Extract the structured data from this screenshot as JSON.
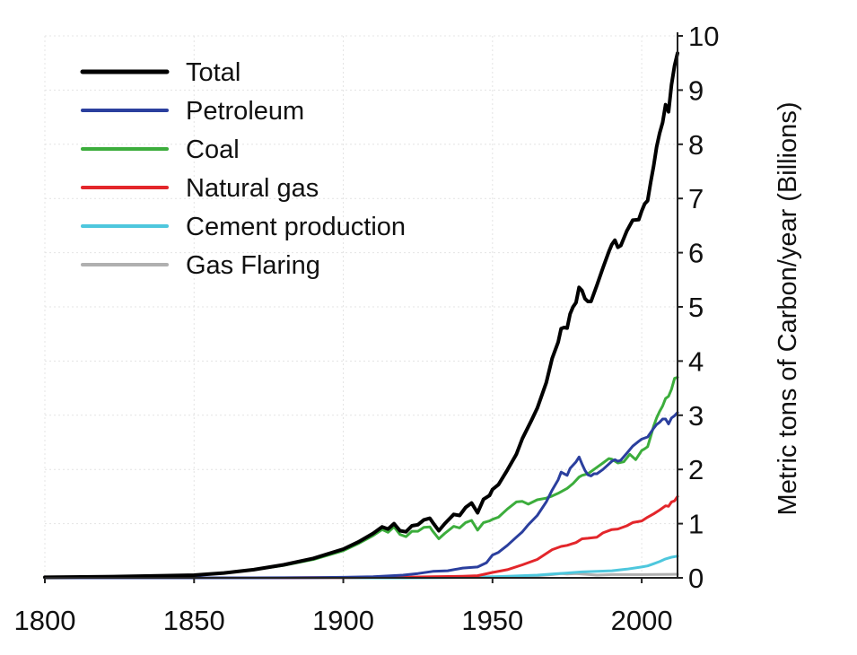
{
  "chart_data": {
    "type": "line",
    "title": "",
    "xlabel": "",
    "ylabel": "Metric tons of Carbon/year (Billions)",
    "xlim": [
      1800,
      2012
    ],
    "ylim": [
      0,
      10
    ],
    "x_ticks": [
      "1800",
      "1850",
      "1900",
      "1950",
      "2000"
    ],
    "y_ticks": [
      "0",
      "1",
      "2",
      "3",
      "4",
      "5",
      "6",
      "7",
      "8",
      "9",
      "10"
    ],
    "y_axis_side": "right",
    "grid": true,
    "legend_position": "top-left",
    "series": [
      {
        "name": "Total",
        "color": "#000000",
        "points": [
          [
            1800,
            0.01
          ],
          [
            1820,
            0.02
          ],
          [
            1840,
            0.04
          ],
          [
            1850,
            0.05
          ],
          [
            1860,
            0.09
          ],
          [
            1870,
            0.15
          ],
          [
            1880,
            0.24
          ],
          [
            1890,
            0.36
          ],
          [
            1900,
            0.53
          ],
          [
            1905,
            0.66
          ],
          [
            1910,
            0.82
          ],
          [
            1913,
            0.94
          ],
          [
            1915,
            0.9
          ],
          [
            1917,
            1.0
          ],
          [
            1919,
            0.87
          ],
          [
            1921,
            0.85
          ],
          [
            1923,
            0.96
          ],
          [
            1925,
            0.98
          ],
          [
            1927,
            1.07
          ],
          [
            1929,
            1.1
          ],
          [
            1930,
            1.02
          ],
          [
            1932,
            0.87
          ],
          [
            1934,
            1.0
          ],
          [
            1937,
            1.17
          ],
          [
            1939,
            1.15
          ],
          [
            1941,
            1.3
          ],
          [
            1943,
            1.38
          ],
          [
            1945,
            1.2
          ],
          [
            1947,
            1.45
          ],
          [
            1949,
            1.52
          ],
          [
            1950,
            1.63
          ],
          [
            1952,
            1.72
          ],
          [
            1955,
            1.99
          ],
          [
            1958,
            2.28
          ],
          [
            1960,
            2.57
          ],
          [
            1963,
            2.9
          ],
          [
            1965,
            3.13
          ],
          [
            1968,
            3.6
          ],
          [
            1970,
            4.05
          ],
          [
            1972,
            4.35
          ],
          [
            1973,
            4.6
          ],
          [
            1974,
            4.62
          ],
          [
            1975,
            4.61
          ],
          [
            1976,
            4.87
          ],
          [
            1977,
            5.0
          ],
          [
            1978,
            5.08
          ],
          [
            1979,
            5.36
          ],
          [
            1980,
            5.3
          ],
          [
            1981,
            5.15
          ],
          [
            1982,
            5.1
          ],
          [
            1983,
            5.1
          ],
          [
            1985,
            5.4
          ],
          [
            1987,
            5.72
          ],
          [
            1989,
            6.02
          ],
          [
            1990,
            6.15
          ],
          [
            1991,
            6.23
          ],
          [
            1992,
            6.1
          ],
          [
            1993,
            6.13
          ],
          [
            1995,
            6.4
          ],
          [
            1997,
            6.6
          ],
          [
            1999,
            6.61
          ],
          [
            2000,
            6.77
          ],
          [
            2001,
            6.9
          ],
          [
            2002,
            6.96
          ],
          [
            2003,
            7.3
          ],
          [
            2004,
            7.6
          ],
          [
            2005,
            7.95
          ],
          [
            2006,
            8.2
          ],
          [
            2007,
            8.4
          ],
          [
            2008,
            8.73
          ],
          [
            2009,
            8.6
          ],
          [
            2010,
            9.1
          ],
          [
            2011,
            9.45
          ],
          [
            2012,
            9.68
          ]
        ]
      },
      {
        "name": "Petroleum",
        "color": "#2b3f9e",
        "points": [
          [
            1800,
            0.0
          ],
          [
            1870,
            0.0
          ],
          [
            1880,
            0.002
          ],
          [
            1890,
            0.005
          ],
          [
            1900,
            0.01
          ],
          [
            1910,
            0.02
          ],
          [
            1920,
            0.05
          ],
          [
            1925,
            0.08
          ],
          [
            1930,
            0.12
          ],
          [
            1935,
            0.13
          ],
          [
            1940,
            0.18
          ],
          [
            1945,
            0.2
          ],
          [
            1948,
            0.28
          ],
          [
            1950,
            0.42
          ],
          [
            1952,
            0.47
          ],
          [
            1955,
            0.6
          ],
          [
            1958,
            0.75
          ],
          [
            1960,
            0.85
          ],
          [
            1962,
            0.98
          ],
          [
            1965,
            1.15
          ],
          [
            1968,
            1.4
          ],
          [
            1970,
            1.62
          ],
          [
            1972,
            1.81
          ],
          [
            1973,
            1.95
          ],
          [
            1974,
            1.92
          ],
          [
            1975,
            1.89
          ],
          [
            1976,
            2.02
          ],
          [
            1977,
            2.08
          ],
          [
            1978,
            2.14
          ],
          [
            1979,
            2.23
          ],
          [
            1980,
            2.1
          ],
          [
            1981,
            1.98
          ],
          [
            1982,
            1.9
          ],
          [
            1983,
            1.88
          ],
          [
            1984,
            1.92
          ],
          [
            1985,
            1.92
          ],
          [
            1987,
            2.0
          ],
          [
            1989,
            2.1
          ],
          [
            1990,
            2.15
          ],
          [
            1991,
            2.18
          ],
          [
            1992,
            2.15
          ],
          [
            1993,
            2.17
          ],
          [
            1995,
            2.3
          ],
          [
            1997,
            2.43
          ],
          [
            1999,
            2.52
          ],
          [
            2000,
            2.56
          ],
          [
            2002,
            2.6
          ],
          [
            2004,
            2.76
          ],
          [
            2005,
            2.83
          ],
          [
            2006,
            2.87
          ],
          [
            2007,
            2.93
          ],
          [
            2008,
            2.93
          ],
          [
            2009,
            2.84
          ],
          [
            2010,
            2.95
          ],
          [
            2011,
            2.99
          ],
          [
            2012,
            3.05
          ]
        ]
      },
      {
        "name": "Coal",
        "color": "#3cad3c",
        "points": [
          [
            1800,
            0.01
          ],
          [
            1820,
            0.02
          ],
          [
            1840,
            0.04
          ],
          [
            1850,
            0.05
          ],
          [
            1860,
            0.09
          ],
          [
            1870,
            0.15
          ],
          [
            1880,
            0.23
          ],
          [
            1890,
            0.34
          ],
          [
            1900,
            0.5
          ],
          [
            1905,
            0.63
          ],
          [
            1910,
            0.78
          ],
          [
            1913,
            0.89
          ],
          [
            1915,
            0.84
          ],
          [
            1917,
            0.94
          ],
          [
            1919,
            0.8
          ],
          [
            1921,
            0.76
          ],
          [
            1923,
            0.86
          ],
          [
            1925,
            0.86
          ],
          [
            1927,
            0.93
          ],
          [
            1929,
            0.94
          ],
          [
            1930,
            0.86
          ],
          [
            1932,
            0.72
          ],
          [
            1934,
            0.82
          ],
          [
            1937,
            0.95
          ],
          [
            1939,
            0.92
          ],
          [
            1941,
            1.02
          ],
          [
            1943,
            1.06
          ],
          [
            1945,
            0.88
          ],
          [
            1947,
            1.02
          ],
          [
            1949,
            1.05
          ],
          [
            1950,
            1.08
          ],
          [
            1952,
            1.12
          ],
          [
            1955,
            1.27
          ],
          [
            1958,
            1.4
          ],
          [
            1960,
            1.41
          ],
          [
            1962,
            1.36
          ],
          [
            1965,
            1.44
          ],
          [
            1968,
            1.47
          ],
          [
            1970,
            1.51
          ],
          [
            1972,
            1.56
          ],
          [
            1975,
            1.65
          ],
          [
            1977,
            1.74
          ],
          [
            1979,
            1.86
          ],
          [
            1980,
            1.89
          ],
          [
            1982,
            1.92
          ],
          [
            1985,
            2.04
          ],
          [
            1987,
            2.12
          ],
          [
            1989,
            2.2
          ],
          [
            1990,
            2.19
          ],
          [
            1992,
            2.12
          ],
          [
            1994,
            2.14
          ],
          [
            1996,
            2.28
          ],
          [
            1998,
            2.18
          ],
          [
            2000,
            2.35
          ],
          [
            2001,
            2.38
          ],
          [
            2002,
            2.42
          ],
          [
            2003,
            2.61
          ],
          [
            2004,
            2.8
          ],
          [
            2005,
            2.95
          ],
          [
            2006,
            3.07
          ],
          [
            2007,
            3.17
          ],
          [
            2008,
            3.31
          ],
          [
            2009,
            3.35
          ],
          [
            2010,
            3.48
          ],
          [
            2011,
            3.68
          ],
          [
            2012,
            3.7
          ]
        ]
      },
      {
        "name": "Natural gas",
        "color": "#e3262b",
        "points": [
          [
            1800,
            0.0
          ],
          [
            1880,
            0.0
          ],
          [
            1890,
            0.003
          ],
          [
            1900,
            0.005
          ],
          [
            1910,
            0.008
          ],
          [
            1920,
            0.01
          ],
          [
            1930,
            0.02
          ],
          [
            1940,
            0.03
          ],
          [
            1945,
            0.04
          ],
          [
            1950,
            0.1
          ],
          [
            1955,
            0.15
          ],
          [
            1960,
            0.24
          ],
          [
            1965,
            0.34
          ],
          [
            1970,
            0.52
          ],
          [
            1973,
            0.58
          ],
          [
            1975,
            0.6
          ],
          [
            1978,
            0.65
          ],
          [
            1980,
            0.72
          ],
          [
            1982,
            0.73
          ],
          [
            1985,
            0.75
          ],
          [
            1987,
            0.83
          ],
          [
            1990,
            0.89
          ],
          [
            1992,
            0.9
          ],
          [
            1995,
            0.96
          ],
          [
            1997,
            1.02
          ],
          [
            2000,
            1.05
          ],
          [
            2002,
            1.12
          ],
          [
            2004,
            1.18
          ],
          [
            2006,
            1.25
          ],
          [
            2008,
            1.33
          ],
          [
            2009,
            1.32
          ],
          [
            2010,
            1.4
          ],
          [
            2011,
            1.42
          ],
          [
            2012,
            1.5
          ]
        ]
      },
      {
        "name": "Cement production",
        "color": "#4ec7dd",
        "points": [
          [
            1800,
            0.0
          ],
          [
            1920,
            0.0
          ],
          [
            1930,
            0.005
          ],
          [
            1940,
            0.01
          ],
          [
            1950,
            0.02
          ],
          [
            1955,
            0.03
          ],
          [
            1960,
            0.04
          ],
          [
            1965,
            0.05
          ],
          [
            1970,
            0.07
          ],
          [
            1975,
            0.09
          ],
          [
            1980,
            0.11
          ],
          [
            1985,
            0.12
          ],
          [
            1990,
            0.13
          ],
          [
            1995,
            0.16
          ],
          [
            2000,
            0.2
          ],
          [
            2002,
            0.22
          ],
          [
            2004,
            0.26
          ],
          [
            2006,
            0.3
          ],
          [
            2008,
            0.35
          ],
          [
            2010,
            0.38
          ],
          [
            2012,
            0.4
          ]
        ]
      },
      {
        "name": "Gas Flaring",
        "color": "#b0b0b0",
        "points": [
          [
            1800,
            0.0
          ],
          [
            1920,
            0.0
          ],
          [
            1940,
            0.005
          ],
          [
            1950,
            0.01
          ],
          [
            1955,
            0.02
          ],
          [
            1960,
            0.03
          ],
          [
            1965,
            0.04
          ],
          [
            1970,
            0.06
          ],
          [
            1973,
            0.08
          ],
          [
            1975,
            0.07
          ],
          [
            1978,
            0.08
          ],
          [
            1980,
            0.07
          ],
          [
            1985,
            0.05
          ],
          [
            1990,
            0.06
          ],
          [
            2000,
            0.06
          ],
          [
            2010,
            0.065
          ],
          [
            2012,
            0.067
          ]
        ]
      }
    ]
  }
}
